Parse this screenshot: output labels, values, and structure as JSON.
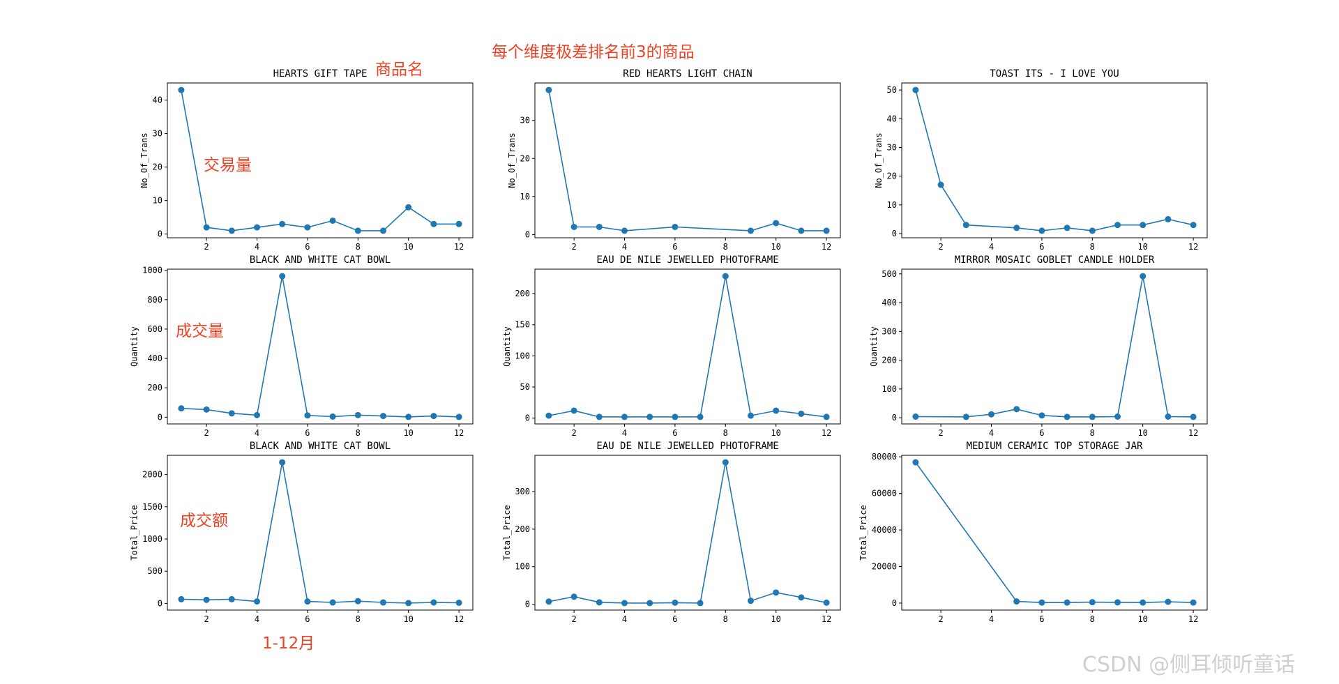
{
  "annotations": {
    "main_title": "每个维度极差排名前3的商品",
    "product_name": "商品名",
    "trans": "交易量",
    "quantity": "成交量",
    "amount": "成交额",
    "months": "1-12月"
  },
  "watermark": "CSDN @侧耳倾听童话",
  "colors": {
    "series": "#1f77b4",
    "annotation": "#ef4123"
  },
  "chart_data": [
    {
      "type": "line",
      "title": "HEARTS GIFT TAPE",
      "ylabel": "No_Of_Trans",
      "x": [
        1,
        2,
        3,
        4,
        5,
        6,
        7,
        8,
        9,
        10,
        11,
        12
      ],
      "y": [
        43,
        2,
        1,
        2,
        3,
        2,
        4,
        1,
        1,
        8,
        3,
        3
      ],
      "xlim": [
        0.45,
        12.55
      ],
      "ylim": [
        -1.1,
        45.1
      ],
      "xticks": [
        2,
        4,
        6,
        8,
        10,
        12
      ],
      "yticks": [
        0,
        10,
        20,
        30,
        40
      ]
    },
    {
      "type": "line",
      "title": "RED HEARTS LIGHT CHAIN",
      "ylabel": "No_Of_Trans",
      "x": [
        1,
        2,
        3,
        4,
        6,
        9,
        10,
        11,
        12
      ],
      "y": [
        38,
        2,
        2,
        1,
        2,
        1,
        3,
        1,
        1
      ],
      "xlim": [
        0.45,
        12.55
      ],
      "ylim": [
        -0.85,
        39.85
      ],
      "xticks": [
        2,
        4,
        6,
        8,
        10,
        12
      ],
      "yticks": [
        0,
        10,
        20,
        30
      ]
    },
    {
      "type": "line",
      "title": "TOAST ITS - I LOVE YOU",
      "ylabel": "No_Of_Trans",
      "x": [
        1,
        2,
        3,
        5,
        6,
        7,
        8,
        9,
        10,
        11,
        12
      ],
      "y": [
        50,
        17,
        3,
        2,
        1,
        2,
        1,
        3,
        3,
        5,
        3
      ],
      "xlim": [
        0.45,
        12.55
      ],
      "ylim": [
        -1.45,
        52.45
      ],
      "xticks": [
        2,
        4,
        6,
        8,
        10,
        12
      ],
      "yticks": [
        0,
        10,
        20,
        30,
        40,
        50
      ]
    },
    {
      "type": "line",
      "title": "BLACK AND WHITE CAT BOWL",
      "ylabel": "Quantity",
      "x": [
        1,
        2,
        3,
        4,
        5,
        6,
        7,
        8,
        9,
        10,
        11,
        12
      ],
      "y": [
        60,
        52,
        26,
        14,
        960,
        12,
        4,
        14,
        8,
        2,
        8,
        2
      ],
      "xlim": [
        0.45,
        12.55
      ],
      "ylim": [
        -46,
        1008
      ],
      "xticks": [
        2,
        4,
        6,
        8,
        10,
        12
      ],
      "yticks": [
        0,
        200,
        400,
        600,
        800,
        1000
      ]
    },
    {
      "type": "line",
      "title": "EAU DE NILE JEWELLED PHOTOFRAME",
      "ylabel": "Quantity",
      "x": [
        1,
        2,
        3,
        4,
        5,
        6,
        7,
        8,
        9,
        10,
        11,
        12
      ],
      "y": [
        4,
        12,
        2,
        2,
        2,
        2,
        2,
        228,
        4,
        12,
        7,
        2
      ],
      "xlim": [
        0.45,
        12.55
      ],
      "ylim": [
        -9.3,
        239.3
      ],
      "xticks": [
        2,
        4,
        6,
        8,
        10,
        12
      ],
      "yticks": [
        0,
        50,
        100,
        150,
        200
      ]
    },
    {
      "type": "line",
      "title": "MIRROR MOSAIC GOBLET CANDLE HOLDER",
      "ylabel": "Quantity",
      "x": [
        1,
        3,
        4,
        5,
        6,
        7,
        8,
        9,
        10,
        11,
        12
      ],
      "y": [
        4,
        3,
        12,
        30,
        8,
        3,
        3,
        4,
        492,
        4,
        3
      ],
      "xlim": [
        0.45,
        12.55
      ],
      "ylim": [
        -21.45,
        516.45
      ],
      "xticks": [
        2,
        4,
        6,
        8,
        10,
        12
      ],
      "yticks": [
        0,
        100,
        200,
        300,
        400,
        500
      ]
    },
    {
      "type": "line",
      "title": "BLACK AND WHITE CAT BOWL",
      "ylabel": "Total_Price",
      "x": [
        1,
        2,
        3,
        4,
        5,
        6,
        7,
        8,
        9,
        10,
        11,
        12
      ],
      "y": [
        65,
        55,
        65,
        30,
        2190,
        30,
        15,
        35,
        15,
        5,
        15,
        10
      ],
      "xlim": [
        0.45,
        12.55
      ],
      "ylim": [
        -104,
        2299
      ],
      "xticks": [
        2,
        4,
        6,
        8,
        10,
        12
      ],
      "yticks": [
        0,
        500,
        1000,
        1500,
        2000
      ]
    },
    {
      "type": "line",
      "title": "EAU DE NILE JEWELLED PHOTOFRAME",
      "ylabel": "Total_Price",
      "x": [
        1,
        2,
        3,
        4,
        5,
        6,
        7,
        8,
        9,
        10,
        11,
        12
      ],
      "y": [
        7,
        20,
        5,
        3,
        3,
        4,
        3,
        378,
        9,
        31,
        18,
        4
      ],
      "xlim": [
        0.45,
        12.55
      ],
      "ylim": [
        -15.75,
        396.75
      ],
      "xticks": [
        2,
        4,
        6,
        8,
        10,
        12
      ],
      "yticks": [
        0,
        100,
        200,
        300
      ]
    },
    {
      "type": "line",
      "title": "MEDIUM CERAMIC TOP STORAGE JAR",
      "ylabel": "Total_Price",
      "x": [
        1,
        5,
        6,
        7,
        8,
        9,
        10,
        11,
        12
      ],
      "y": [
        77000,
        900,
        300,
        300,
        500,
        400,
        300,
        700,
        300
      ],
      "xlim": [
        0.45,
        12.55
      ],
      "ylim": [
        -3835,
        80835
      ],
      "xticks": [
        2,
        4,
        6,
        8,
        10,
        12
      ],
      "yticks": [
        0,
        20000,
        40000,
        60000,
        80000
      ]
    }
  ]
}
